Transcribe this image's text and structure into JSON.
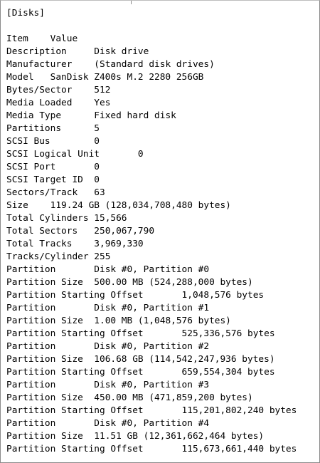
{
  "lines": [
    "[Disks]",
    "",
    "Item\tValue",
    "Description\tDisk drive",
    "Manufacturer\t(Standard disk drives)",
    "Model\tSanDisk Z400s M.2 2280 256GB",
    "Bytes/Sector\t512",
    "Media Loaded\tYes",
    "Media Type\tFixed hard disk",
    "Partitions\t5",
    "SCSI Bus\t0",
    "SCSI Logical Unit\t0",
    "SCSI Port\t0",
    "SCSI Target ID\t0",
    "Sectors/Track\t63",
    "Size\t119.24 GB (128,034,708,480 bytes)",
    "Total Cylinders\t15,566",
    "Total Sectors\t250,067,790",
    "Total Tracks\t3,969,330",
    "Tracks/Cylinder\t255",
    "Partition\tDisk #0, Partition #0",
    "Partition Size\t500.00 MB (524,288,000 bytes)",
    "Partition Starting Offset\t1,048,576 bytes",
    "Partition\tDisk #0, Partition #1",
    "Partition Size\t1.00 MB (1,048,576 bytes)",
    "Partition Starting Offset\t525,336,576 bytes",
    "Partition\tDisk #0, Partition #2",
    "Partition Size\t106.68 GB (114,542,247,936 bytes)",
    "Partition Starting Offset\t659,554,304 bytes",
    "Partition\tDisk #0, Partition #3",
    "Partition Size\t450.00 MB (471,859,200 bytes)",
    "Partition Starting Offset\t115,201,802,240 bytes",
    "Partition\tDisk #0, Partition #4",
    "Partition Size\t11.51 GB (12,361,662,464 bytes)",
    "Partition Starting Offset\t115,673,661,440 bytes"
  ]
}
